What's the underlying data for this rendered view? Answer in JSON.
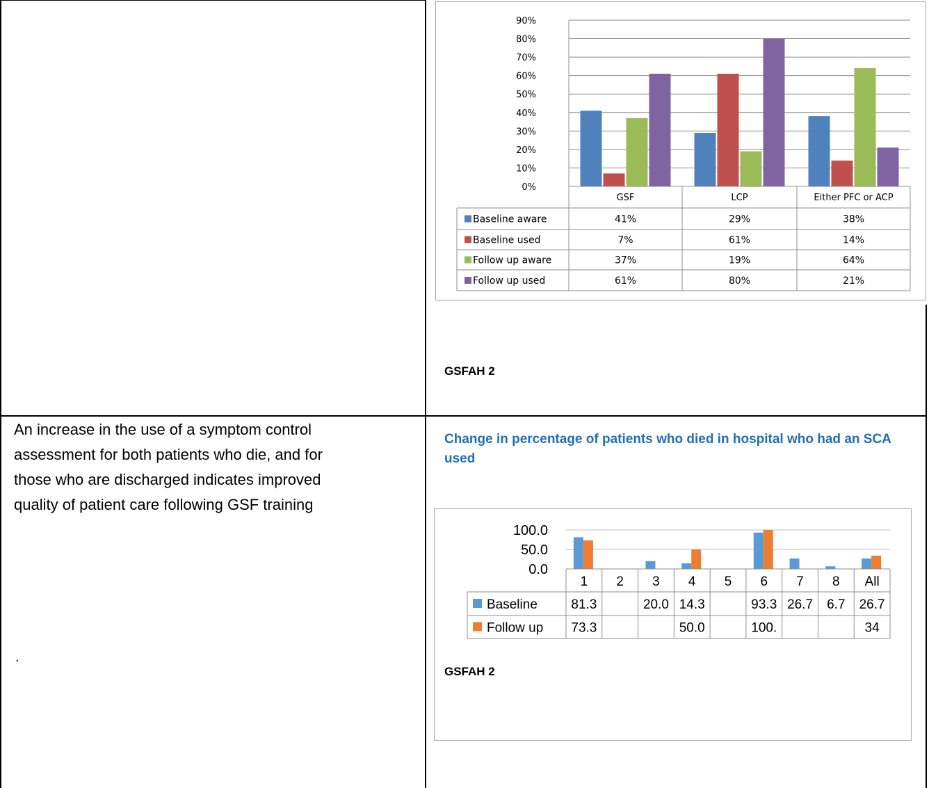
{
  "left_cell": {
    "text_lines": [
      "An increase in the use of a symptom control",
      "assessment for both patients who die, and for",
      "those who are discharged indicates improved",
      "quality of patient care following GSF training"
    ],
    "dot": "."
  },
  "right_top": {
    "label": "GSFAH 2"
  },
  "right_bottom": {
    "title": "Change in percentage of patients who died in hospital who had an SCA used",
    "label": "GSFAH 2"
  },
  "colors": {
    "chart1": [
      "#4f81bd",
      "#c0504d",
      "#9bbb59",
      "#8064a2"
    ],
    "chart2": [
      "#5b9bd5",
      "#ed7d31"
    ],
    "title": "#1f6fb4"
  },
  "chart_data": [
    {
      "type": "bar",
      "categories": [
        "GSF",
        "LCP",
        "Either PFC or ACP"
      ],
      "series": [
        {
          "name": "Baseline aware",
          "values": [
            41,
            29,
            38
          ],
          "labels": [
            "41%",
            "29%",
            "38%"
          ]
        },
        {
          "name": "Baseline used",
          "values": [
            7,
            61,
            14
          ],
          "labels": [
            "7%",
            "61%",
            "14%"
          ]
        },
        {
          "name": "Follow up aware",
          "values": [
            37,
            19,
            64
          ],
          "labels": [
            "37%",
            "19%",
            "64%"
          ]
        },
        {
          "name": "Follow up  used",
          "values": [
            61,
            80,
            21
          ],
          "labels": [
            "61%",
            "80%",
            "21%"
          ]
        }
      ],
      "yticks": [
        "0%",
        "10%",
        "20%",
        "30%",
        "40%",
        "50%",
        "60%",
        "70%",
        "80%",
        "90%"
      ],
      "ylim": [
        0,
        90
      ],
      "grid": true,
      "legend": "data-table"
    },
    {
      "type": "bar",
      "categories": [
        "1",
        "2",
        "3",
        "4",
        "5",
        "6",
        "7",
        "8",
        "All"
      ],
      "series": [
        {
          "name": "Baseline",
          "values": [
            81.3,
            null,
            20.0,
            14.3,
            null,
            93.3,
            26.7,
            6.7,
            26.7
          ],
          "labels": [
            "81.3",
            "",
            "20.0",
            "14.3",
            "",
            "93.3",
            "26.7",
            "6.7",
            "26.7"
          ]
        },
        {
          "name": "Follow up",
          "values": [
            73.3,
            null,
            null,
            50.0,
            null,
            100,
            null,
            null,
            34
          ],
          "labels": [
            "73.3",
            "",
            "",
            "50.0",
            "",
            "100.",
            "",
            "",
            "34"
          ]
        }
      ],
      "yticks": [
        "0.0",
        "50.0",
        "100.0"
      ],
      "ylim": [
        0,
        100
      ],
      "grid": true,
      "legend": "data-table"
    }
  ]
}
